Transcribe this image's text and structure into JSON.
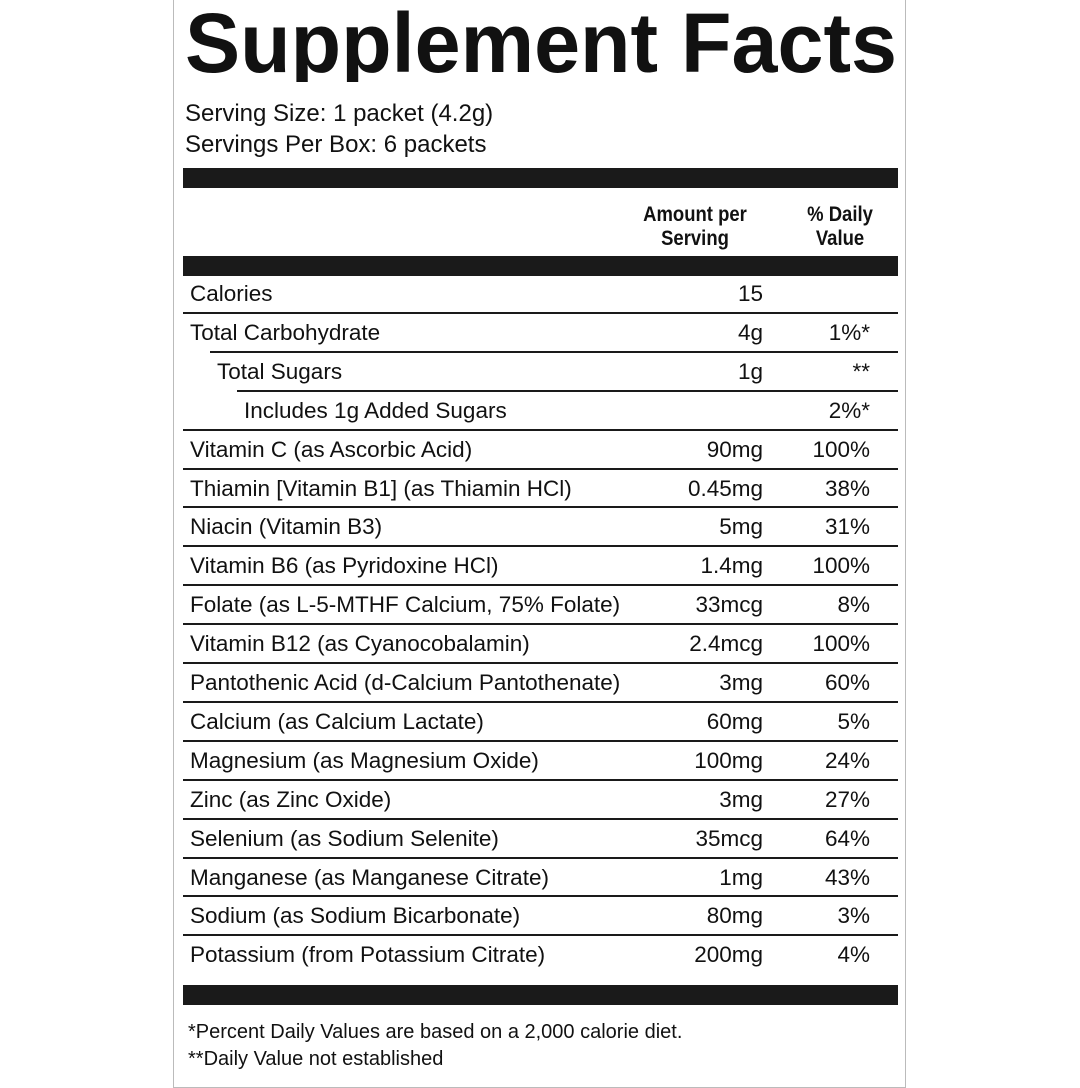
{
  "title": "Supplement Facts",
  "serving_size": "Serving Size: 1 packet (4.2g)",
  "servings_per_box": "Servings Per Box: 6 packets",
  "header": {
    "amount": "Amount per Serving",
    "daily_value": "% Daily Value"
  },
  "rows": [
    {
      "name": "Calories",
      "amount": "15"
    },
    {
      "name": "Total Carbohydrate",
      "amount": "4g",
      "daily_value": "1%*"
    },
    {
      "name": "Total Sugars",
      "amount": "1g",
      "daily_value": "**"
    },
    {
      "name": "Includes 1g Added Sugars",
      "daily_value": "2%*"
    },
    {
      "name": "Vitamin C (as Ascorbic Acid)",
      "amount": "90mg",
      "daily_value": "100%"
    },
    {
      "name": "Thiamin [Vitamin B1] (as Thiamin HCl)",
      "amount": "0.45mg",
      "daily_value": "38%"
    },
    {
      "name": "Niacin (Vitamin B3)",
      "amount": "5mg",
      "daily_value": "31%"
    },
    {
      "name": "Vitamin B6 (as Pyridoxine HCl)",
      "amount": "1.4mg",
      "daily_value": "100%"
    },
    {
      "name": "Folate (as L-5-MTHF Calcium, 75% Folate)",
      "amount": "33mcg",
      "daily_value": "8%"
    },
    {
      "name": "Vitamin B12 (as Cyanocobalamin)",
      "amount": "2.4mcg",
      "daily_value": "100%"
    },
    {
      "name": "Pantothenic Acid (d-Calcium Pantothenate)",
      "amount": "3mg",
      "daily_value": "60%"
    },
    {
      "name": "Calcium (as Calcium Lactate)",
      "amount": "60mg",
      "daily_value": "5%"
    },
    {
      "name": "Magnesium (as Magnesium Oxide)",
      "amount": "100mg",
      "daily_value": "24%"
    },
    {
      "name": "Zinc (as Zinc Oxide)",
      "amount": "3mg",
      "daily_value": "27%"
    },
    {
      "name": "Selenium (as Sodium Selenite)",
      "amount": "35mcg",
      "daily_value": "64%"
    },
    {
      "name": "Manganese (as Manganese Citrate)",
      "amount": "1mg",
      "daily_value": "43%"
    },
    {
      "name": "Sodium (as Sodium Bicarbonate)",
      "amount": "80mg",
      "daily_value": "3%"
    },
    {
      "name": "Potassium (from Potassium Citrate)",
      "amount": "200mg",
      "daily_value": "4%"
    }
  ],
  "footnotes": [
    "*Percent Daily Values are based on a 2,000 calorie diet.",
    "**Daily Value not established"
  ]
}
